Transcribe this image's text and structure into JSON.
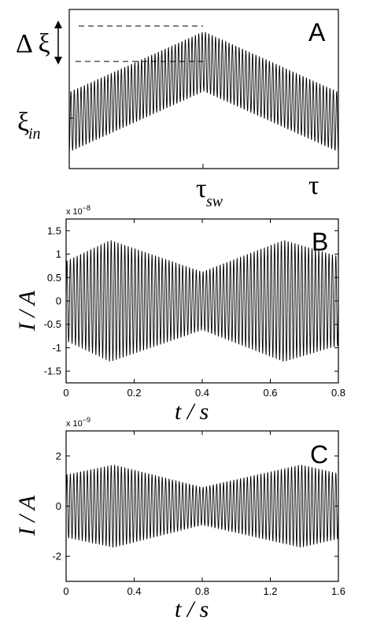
{
  "chart_data": [
    {
      "panel": "A",
      "type": "line",
      "xlabel_marks": [
        "τ_sw",
        "τ"
      ],
      "ylabel_marks": [
        "ξ_in",
        "Δ ξ"
      ],
      "series": [
        {
          "values": [
            0,
            1,
            0
          ],
          "x": [
            0,
            0.5,
            1
          ]
        }
      ],
      "carrier_cycles": 80,
      "envelope": "triangular sweep: baseline rises linearly to a peak at τ_sw then falls back; oscillation amplitude constant"
    },
    {
      "panel": "B",
      "type": "line",
      "exponent_label": "x 10^-8",
      "ylabel": "I / A",
      "xlabel": "t / s",
      "xlim": [
        0,
        0.8
      ],
      "ylim": [
        -1.75,
        1.75
      ],
      "xticks": [
        "0",
        "0.2",
        "0.4",
        "0.6",
        "0.8"
      ],
      "yticks": [
        "1.5",
        "1",
        "0.5",
        "0",
        "-0.5",
        "-1",
        "-1.5"
      ],
      "carrier_cycles": 80,
      "envelope": {
        "t": [
          0,
          0.13,
          0.4,
          0.64,
          0.8
        ],
        "amplitude": [
          0.85,
          1.3,
          0.62,
          1.3,
          0.95
        ]
      }
    },
    {
      "panel": "C",
      "type": "line",
      "exponent_label": "x 10^-9",
      "ylabel": "I / A",
      "xlabel": "t / s",
      "xlim": [
        0,
        1.6
      ],
      "ylim": [
        -3,
        3
      ],
      "xticks": [
        "0",
        "0.4",
        "0.8",
        "1.2",
        "1.6"
      ],
      "yticks": [
        "2",
        "0",
        "-2"
      ],
      "carrier_cycles": 80,
      "envelope": {
        "t": [
          0,
          0.28,
          0.8,
          1.38,
          1.6
        ],
        "amplitude": [
          1.25,
          1.65,
          0.75,
          1.65,
          1.3
        ]
      }
    }
  ],
  "panels": {
    "a": {
      "letter": "A",
      "xmark_sw": "τ",
      "xmark_sw_sub": "sw",
      "xmark_end": "τ",
      "ymark_in": "ξ",
      "ymark_in_sub": "in",
      "ymark_delta": "Δ ξ"
    },
    "b": {
      "letter": "B",
      "exp_base": "x 10",
      "exp_power": "−8",
      "ylabel": "I / A",
      "xlabel": "t / s"
    },
    "c": {
      "letter": "C",
      "exp_base": "x 10",
      "exp_power": "−9",
      "ylabel": "I / A",
      "xlabel": "t / s"
    }
  }
}
